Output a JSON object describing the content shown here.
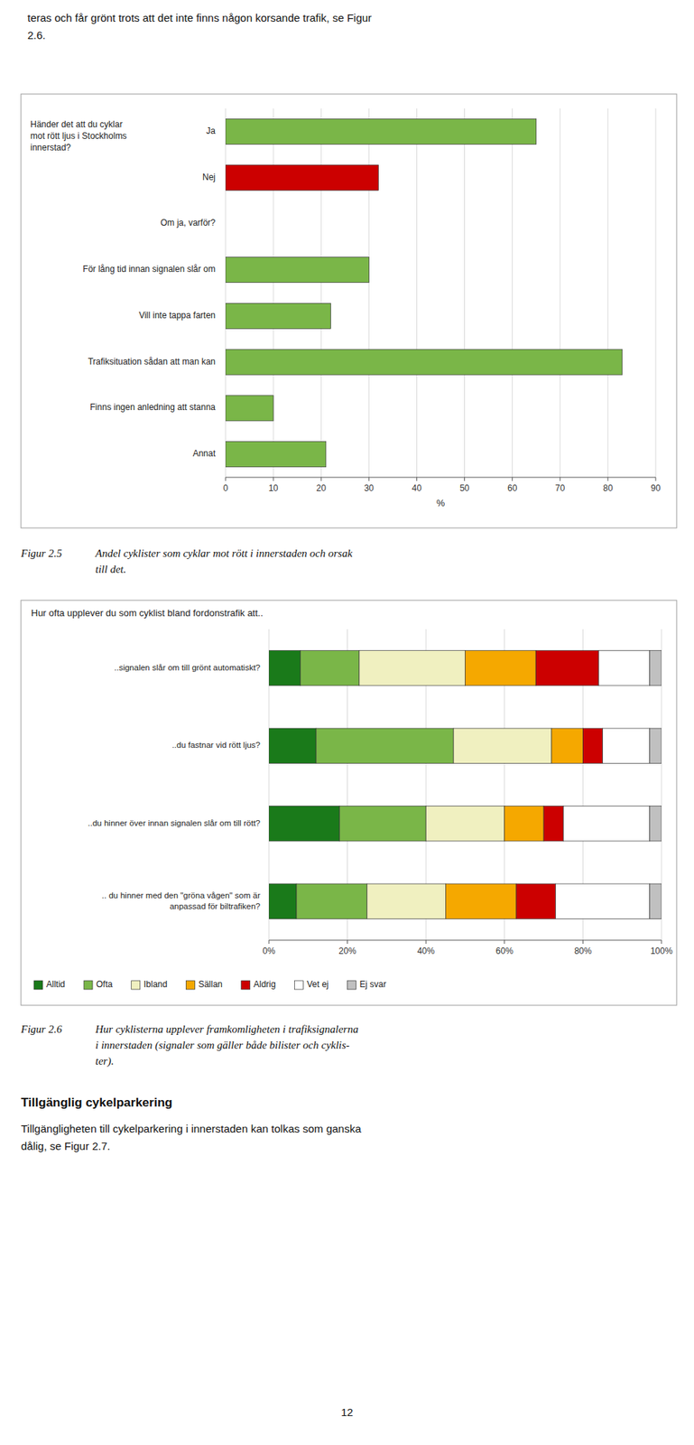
{
  "chart_data": [
    {
      "type": "bar",
      "orientation": "horizontal",
      "categories": [
        "Ja",
        "Nej",
        "Om ja, varför?",
        "För lång tid innan signalen slår om",
        "Vill inte tappa farten",
        "Trafiksituation sådan att man kan",
        "Finns ingen anledning att stanna",
        "Annat"
      ],
      "values": [
        65,
        32,
        0,
        30,
        22,
        83,
        10,
        21
      ],
      "colors": [
        "#7ab648",
        "#cc0000",
        null,
        "#7ab648",
        "#7ab648",
        "#7ab648",
        "#7ab648",
        "#7ab648"
      ],
      "xlim": [
        0,
        90
      ],
      "xticks": [
        0,
        10,
        20,
        30,
        40,
        50,
        60,
        70,
        80,
        90
      ],
      "xlabel": "%",
      "grid": true,
      "annotations": [
        "Händer det att du cyklar\nmot rött ljus i Stockholms\ninnerstad?"
      ]
    },
    {
      "type": "bar",
      "orientation": "horizontal",
      "stacked": true,
      "title": "Hur ofta upplever du som cyklist bland fordonstrafik att..",
      "categories": [
        "..signalen slår om till grönt automatiskt?",
        "..du fastnar vid rött ljus?",
        "..du hinner över innan signalen slår om till rött?",
        ".. du hinner med den \"gröna vågen\" som är\nanpassad för biltrafiken?"
      ],
      "series": [
        {
          "name": "Alltid",
          "color": "#1a7a1a",
          "values": [
            8,
            12,
            18,
            7
          ]
        },
        {
          "name": "Ofta",
          "color": "#7ab648",
          "values": [
            15,
            35,
            22,
            18
          ]
        },
        {
          "name": "Ibland",
          "color": "#f0f0c0",
          "values": [
            27,
            25,
            20,
            20
          ]
        },
        {
          "name": "Sällan",
          "color": "#f5a800",
          "values": [
            18,
            8,
            10,
            18
          ]
        },
        {
          "name": "Aldrig",
          "color": "#cc0000",
          "values": [
            16,
            5,
            5,
            10
          ]
        },
        {
          "name": "Vet ej",
          "color": "#ffffff",
          "values": [
            13,
            12,
            22,
            24
          ]
        },
        {
          "name": "Ej svar",
          "color": "#c0c0c0",
          "values": [
            3,
            3,
            3,
            3
          ]
        }
      ],
      "xlim": [
        0,
        100
      ],
      "xticks": [
        {
          "value": 0,
          "label": "0%"
        },
        {
          "value": 20,
          "label": "20%"
        },
        {
          "value": 40,
          "label": "40%"
        },
        {
          "value": 60,
          "label": "60%"
        },
        {
          "value": 80,
          "label": "80%"
        },
        {
          "value": 100,
          "label": "100%"
        }
      ],
      "grid": true,
      "legend": "bottom"
    }
  ],
  "page_text": {
    "top": [
      "teras och får grönt trots att det inte finns någon korsande trafik, se Figur",
      "2.6."
    ],
    "captions": [
      [
        "Figur 2.5",
        "Andel cyklister som cyklar mot rött i innerstaden och orsak",
        "till det."
      ],
      [
        "Figur 2.6",
        "Hur cyklisterna upplever framkomligheten i trafiksignalerna",
        "i innerstaden (signaler som gäller både bilister och cyklis-",
        "ter)."
      ]
    ],
    "heading": "Tillgänglig cykelparkering",
    "body": [
      "Tillgängligheten till cykelparkering i innerstaden kan tolkas som ganska",
      "dålig, se Figur 2.7."
    ],
    "page_number": "12"
  }
}
